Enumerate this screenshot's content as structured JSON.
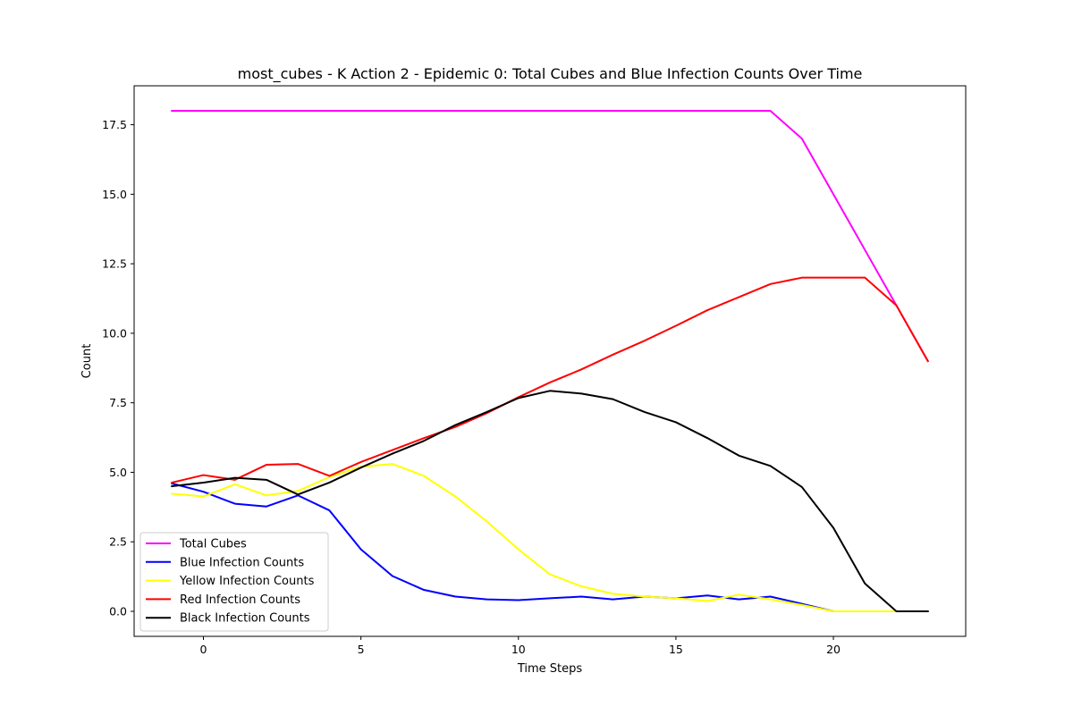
{
  "chart_data": {
    "type": "line",
    "title": "most_cubes - K Action 2 - Epidemic 0: Total Cubes and Blue Infection Counts Over Time",
    "xlabel": "Time Steps",
    "ylabel": "Count",
    "xlim": [
      -2.2,
      24.2
    ],
    "ylim": [
      -0.9,
      18.9
    ],
    "xticks": [
      0,
      5,
      10,
      15,
      20
    ],
    "xtick_labels": [
      "0",
      "5",
      "10",
      "15",
      "20"
    ],
    "yticks": [
      0,
      2.5,
      5,
      7.5,
      10,
      12.5,
      15,
      17.5
    ],
    "ytick_labels": [
      "0.0",
      "2.5",
      "5.0",
      "7.5",
      "10.0",
      "12.5",
      "15.0",
      "17.5"
    ],
    "grid": false,
    "legend_position": "lower-left",
    "x": [
      -1,
      0,
      1,
      2,
      3,
      4,
      5,
      6,
      7,
      8,
      9,
      10,
      11,
      12,
      13,
      14,
      15,
      16,
      17,
      18,
      19,
      20,
      21,
      22,
      23
    ],
    "series": [
      {
        "name": "Total Cubes",
        "color": "#ff00ff",
        "values": [
          18,
          18,
          18,
          18,
          18,
          18,
          18,
          18,
          18,
          18,
          18,
          18,
          18,
          18,
          18,
          18,
          18,
          18,
          18,
          18,
          17,
          15,
          13,
          11,
          9
        ]
      },
      {
        "name": "Blue Infection Counts",
        "color": "#0000ff",
        "values": [
          4.6,
          4.3,
          3.87,
          3.77,
          4.17,
          3.63,
          2.23,
          1.27,
          0.77,
          0.53,
          0.43,
          0.4,
          0.47,
          0.53,
          0.43,
          0.53,
          0.47,
          0.57,
          0.43,
          0.53,
          0.27,
          0,
          0,
          0,
          null
        ]
      },
      {
        "name": "Yellow Infection Counts",
        "color": "#ffff00",
        "values": [
          4.23,
          4.13,
          4.57,
          4.17,
          4.33,
          4.83,
          5.2,
          5.3,
          4.87,
          4.13,
          3.23,
          2.23,
          1.33,
          0.9,
          0.63,
          0.53,
          0.47,
          0.37,
          0.6,
          0.43,
          0.23,
          0,
          0,
          0,
          null
        ]
      },
      {
        "name": "Red Infection Counts",
        "color": "#ff0000",
        "values": [
          4.63,
          4.9,
          4.73,
          5.27,
          5.3,
          4.87,
          5.37,
          5.8,
          6.23,
          6.63,
          7.13,
          7.7,
          8.23,
          8.7,
          9.23,
          9.73,
          10.27,
          10.83,
          11.3,
          11.77,
          12,
          12,
          12,
          11,
          9
        ]
      },
      {
        "name": "Black Infection Counts",
        "color": "#000000",
        "values": [
          4.5,
          4.63,
          4.8,
          4.73,
          4.2,
          4.63,
          5.17,
          5.67,
          6.13,
          6.7,
          7.17,
          7.67,
          7.93,
          7.83,
          7.63,
          7.17,
          6.8,
          6.23,
          5.6,
          5.23,
          4.47,
          3,
          1,
          0,
          0
        ]
      }
    ]
  }
}
